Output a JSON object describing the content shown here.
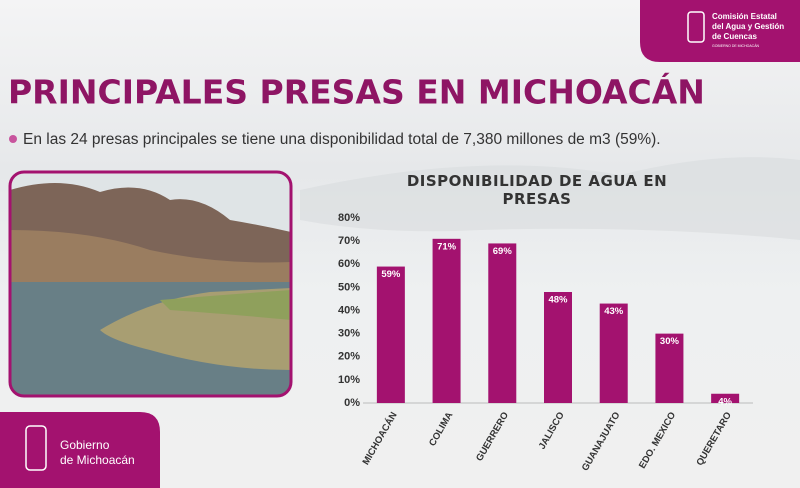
{
  "header": {
    "title": "PRINCIPALES PRESAS EN MICHOACÁN",
    "bullet": "En las 24 presas principales se tiene una disponibilidad total de 7,380 millones de m3 (59%).",
    "agency_lines": [
      "Comisión Estatal",
      "del Agua y Gestión",
      "de Cuencas"
    ],
    "agency_sub": "GOBIERNO DE MICHOACÁN"
  },
  "footer": {
    "lines": [
      "Gobierno",
      "de Michoacán"
    ]
  },
  "chart_data": {
    "type": "bar",
    "title": "DISPONIBILIDAD DE AGUA EN PRESAS",
    "categories": [
      "MICHOACÁN",
      "COLIMA",
      "GUERRERO",
      "JALISCO",
      "GUANAJUATO",
      "EDO. MEXICO",
      "QUERETARO"
    ],
    "values": [
      59,
      71,
      69,
      48,
      43,
      30,
      4
    ],
    "value_labels": [
      "59%",
      "71%",
      "69%",
      "48%",
      "43%",
      "30%",
      "4%"
    ],
    "color": "#a3126f",
    "ylim": [
      0,
      80
    ],
    "yticks": [
      {
        "value": 0,
        "label": "0%"
      },
      {
        "value": 10,
        "label": "10%"
      },
      {
        "value": 20,
        "label": "20%"
      },
      {
        "value": 30,
        "label": "30%"
      },
      {
        "value": 40,
        "label": "40%"
      },
      {
        "value": 50,
        "label": "50%"
      },
      {
        "value": 60,
        "label": "60%"
      },
      {
        "value": 70,
        "label": "70%"
      },
      {
        "value": 80,
        "label": "80%"
      }
    ],
    "grid": false
  }
}
